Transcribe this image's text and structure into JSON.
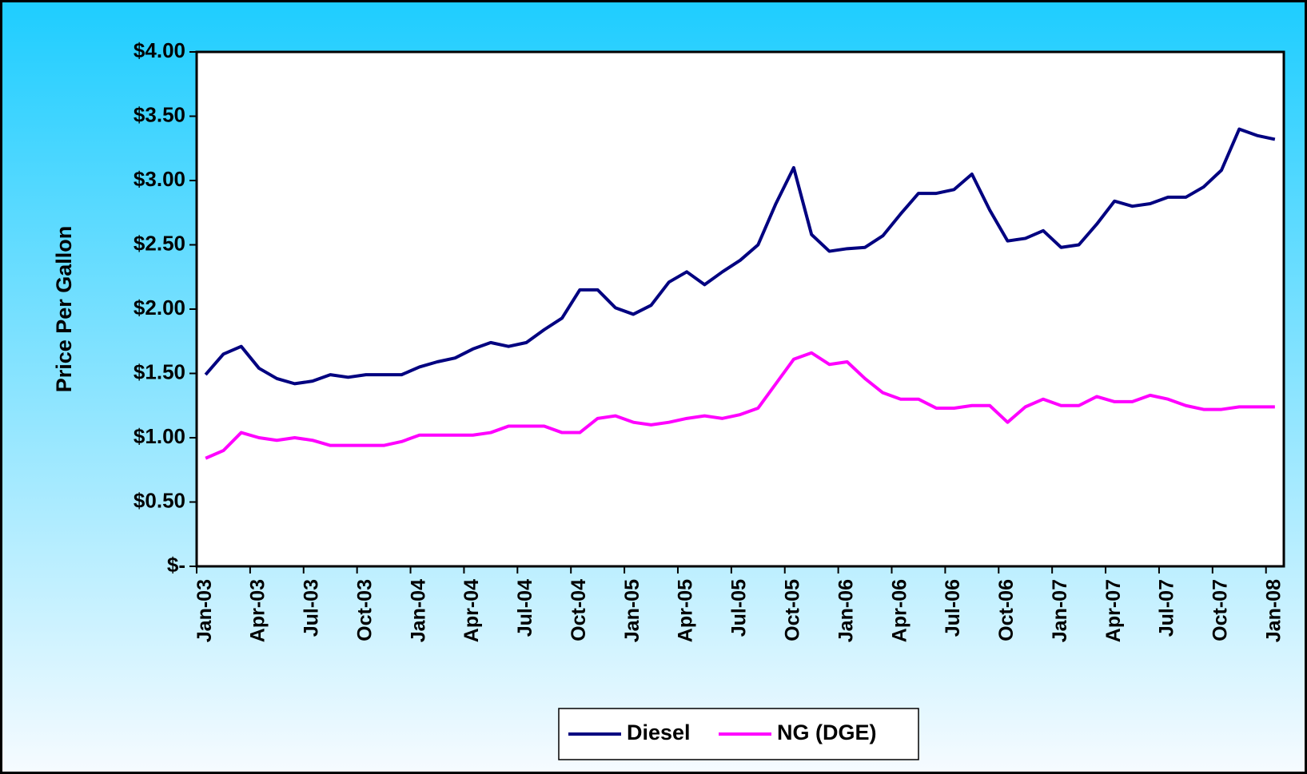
{
  "chart_data": {
    "type": "line",
    "y_label": "Price Per Gallon",
    "categories": [
      "Jan-03",
      null,
      null,
      "Apr-03",
      null,
      null,
      "Jul-03",
      null,
      null,
      "Oct-03",
      null,
      null,
      "Jan-04",
      null,
      null,
      "Apr-04",
      null,
      null,
      "Jul-04",
      null,
      null,
      "Oct-04",
      null,
      null,
      "Jan-05",
      null,
      null,
      "Apr-05",
      null,
      null,
      "Jul-05",
      null,
      null,
      "Oct-05",
      null,
      null,
      "Jan-06",
      null,
      null,
      "Apr-06",
      null,
      null,
      "Jul-06",
      null,
      null,
      "Oct-06",
      null,
      null,
      "Jan-07",
      null,
      null,
      "Apr-07",
      null,
      null,
      "Jul-07",
      null,
      null,
      "Oct-07",
      null,
      null,
      "Jan-08"
    ],
    "series": [
      {
        "name": "Diesel",
        "color": "#000080",
        "values": [
          1.49,
          1.65,
          1.71,
          1.54,
          1.46,
          1.42,
          1.44,
          1.49,
          1.47,
          1.49,
          1.49,
          1.49,
          1.55,
          1.59,
          1.62,
          1.69,
          1.74,
          1.71,
          1.74,
          1.84,
          1.93,
          2.15,
          2.15,
          2.01,
          1.96,
          2.03,
          2.21,
          2.29,
          2.19,
          2.29,
          2.38,
          2.5,
          2.82,
          3.1,
          2.58,
          2.45,
          2.47,
          2.48,
          2.57,
          2.74,
          2.9,
          2.9,
          2.93,
          3.05,
          2.77,
          2.53,
          2.55,
          2.61,
          2.48,
          2.5,
          2.66,
          2.84,
          2.8,
          2.82,
          2.87,
          2.87,
          2.95,
          3.08,
          3.4,
          3.35,
          3.32
        ]
      },
      {
        "name": "NG (DGE)",
        "color": "#ff00ff",
        "values": [
          0.84,
          0.9,
          1.04,
          1.0,
          0.98,
          1.0,
          0.98,
          0.94,
          0.94,
          0.94,
          0.94,
          0.97,
          1.02,
          1.02,
          1.02,
          1.02,
          1.04,
          1.09,
          1.09,
          1.09,
          1.04,
          1.04,
          1.15,
          1.17,
          1.12,
          1.1,
          1.12,
          1.15,
          1.17,
          1.15,
          1.18,
          1.23,
          1.42,
          1.61,
          1.66,
          1.57,
          1.59,
          1.46,
          1.35,
          1.3,
          1.3,
          1.23,
          1.23,
          1.25,
          1.25,
          1.12,
          1.24,
          1.3,
          1.25,
          1.25,
          1.32,
          1.28,
          1.28,
          1.33,
          1.3,
          1.25,
          1.22,
          1.22,
          1.24,
          1.24,
          1.24
        ]
      }
    ],
    "ylim": [
      0,
      4
    ],
    "yticks": [
      {
        "value": 0,
        "label": "$-"
      },
      {
        "value": 0.5,
        "label": "$0.50"
      },
      {
        "value": 1,
        "label": "$1.00"
      },
      {
        "value": 1.5,
        "label": "$1.50"
      },
      {
        "value": 2,
        "label": "$2.00"
      },
      {
        "value": 2.5,
        "label": "$2.50"
      },
      {
        "value": 3,
        "label": "$3.00"
      },
      {
        "value": 3.5,
        "label": "$3.50"
      },
      {
        "value": 4,
        "label": "$4.00"
      }
    ],
    "grid": false,
    "legend": "bottom"
  }
}
